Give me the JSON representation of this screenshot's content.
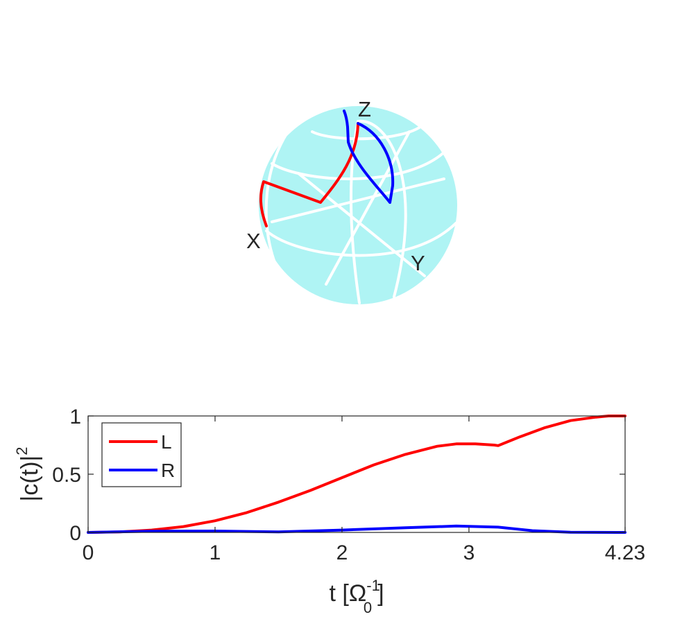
{
  "bloch": {
    "axis_labels": {
      "x": "X",
      "y": "Y",
      "z": "Z"
    },
    "colors": {
      "sphere": "#aff4f4",
      "grid": "#ffffff",
      "L": "#ff0000",
      "R": "#0000ff"
    }
  },
  "chart_data": {
    "type": "line",
    "xlabel_main": "t [Ω",
    "xlabel_sup": "-1",
    "xlabel_sub": "0",
    "xlabel_end": "]",
    "ylabel_main": "|c(t)|",
    "ylabel_sup": "2",
    "xlim": [
      0,
      4.23
    ],
    "ylim": [
      0,
      1
    ],
    "xticks": [
      0,
      1,
      2,
      3,
      4.23
    ],
    "xtick_labels": [
      "0",
      "1",
      "2",
      "3",
      "4.23"
    ],
    "yticks": [
      0,
      0.5,
      1
    ],
    "ytick_labels": [
      "0",
      "0.5",
      "1"
    ],
    "legend_position": "top-left",
    "grid": false,
    "series": [
      {
        "name": "L",
        "color": "#ff0000",
        "x": [
          0,
          0.25,
          0.5,
          0.75,
          1.0,
          1.25,
          1.5,
          1.75,
          2.0,
          2.25,
          2.5,
          2.75,
          2.9,
          3.05,
          3.2,
          3.23,
          3.4,
          3.6,
          3.8,
          4.0,
          4.1,
          4.23
        ],
        "y": [
          0.0,
          0.005,
          0.02,
          0.05,
          0.1,
          0.17,
          0.26,
          0.36,
          0.47,
          0.58,
          0.67,
          0.74,
          0.76,
          0.76,
          0.75,
          0.745,
          0.82,
          0.9,
          0.96,
          0.99,
          1.0,
          1.0
        ]
      },
      {
        "name": "R",
        "color": "#0000ff",
        "x": [
          0,
          0.5,
          1.0,
          1.5,
          2.0,
          2.5,
          2.9,
          3.23,
          3.5,
          3.8,
          4.23
        ],
        "y": [
          0.0,
          0.01,
          0.012,
          0.004,
          0.02,
          0.04,
          0.055,
          0.045,
          0.015,
          0.002,
          0.0
        ]
      }
    ]
  }
}
